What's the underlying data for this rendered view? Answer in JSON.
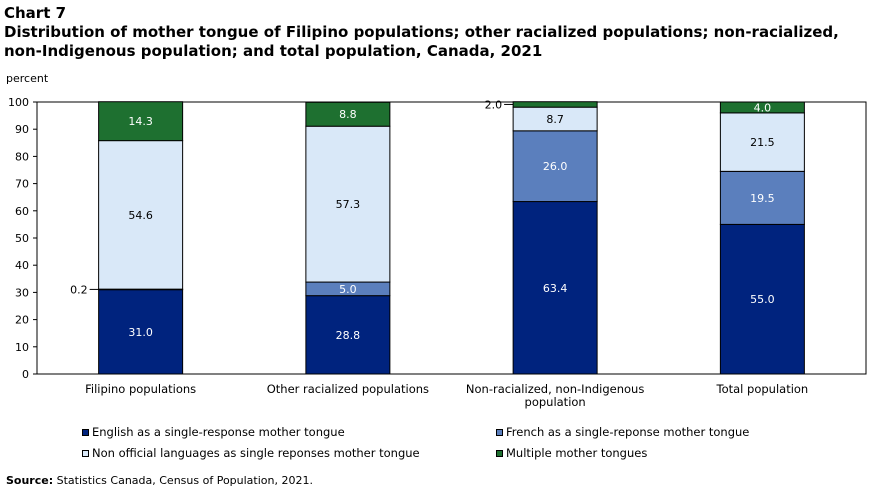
{
  "header": {
    "chart_number": "Chart 7",
    "title": "Distribution of mother tongue of Filipino populations; other racialized populations; non-racialized, non-Indigenous population; and total population, Canada, 2021"
  },
  "source": {
    "label": "Source:",
    "text": "Statistics Canada, Census of Population, 2021."
  },
  "colors": {
    "english": "#00237e",
    "french": "#5b7fbd",
    "non_official": "#d9e8f8",
    "multiple": "#1e7030"
  },
  "chart_data": {
    "type": "bar",
    "stacked": true,
    "ylabel": "percent",
    "ylim": [
      0,
      100
    ],
    "yticks": [
      0,
      10,
      20,
      30,
      40,
      50,
      60,
      70,
      80,
      90,
      100
    ],
    "grid": false,
    "legend_position": "bottom",
    "categories": [
      "Filipino populations",
      "Other racialized populations",
      "Non-racialized, non-Indigenous population",
      "Total population"
    ],
    "series": [
      {
        "key": "english",
        "name": "English as a single-response mother tongue",
        "values": [
          31.0,
          28.8,
          63.4,
          55.0
        ],
        "labels": [
          "31.0",
          "28.8",
          "63.4",
          "55.0"
        ]
      },
      {
        "key": "french",
        "name": "French as a single-reponse mother tongue",
        "values": [
          0.2,
          5.0,
          26.0,
          19.5
        ],
        "labels": [
          "0.2",
          "5.0",
          "26.0",
          "19.5"
        ]
      },
      {
        "key": "non_official",
        "name": "Non official languages as single reponses mother tongue",
        "values": [
          54.6,
          57.3,
          8.7,
          21.5
        ],
        "labels": [
          "54.6",
          "57.3",
          "8.7",
          "21.5"
        ]
      },
      {
        "key": "multiple",
        "name": "Multiple mother tongues",
        "values": [
          14.3,
          8.8,
          2.0,
          4.0
        ],
        "labels": [
          "14.3",
          "8.8",
          "2.0",
          "4.0"
        ]
      }
    ]
  }
}
